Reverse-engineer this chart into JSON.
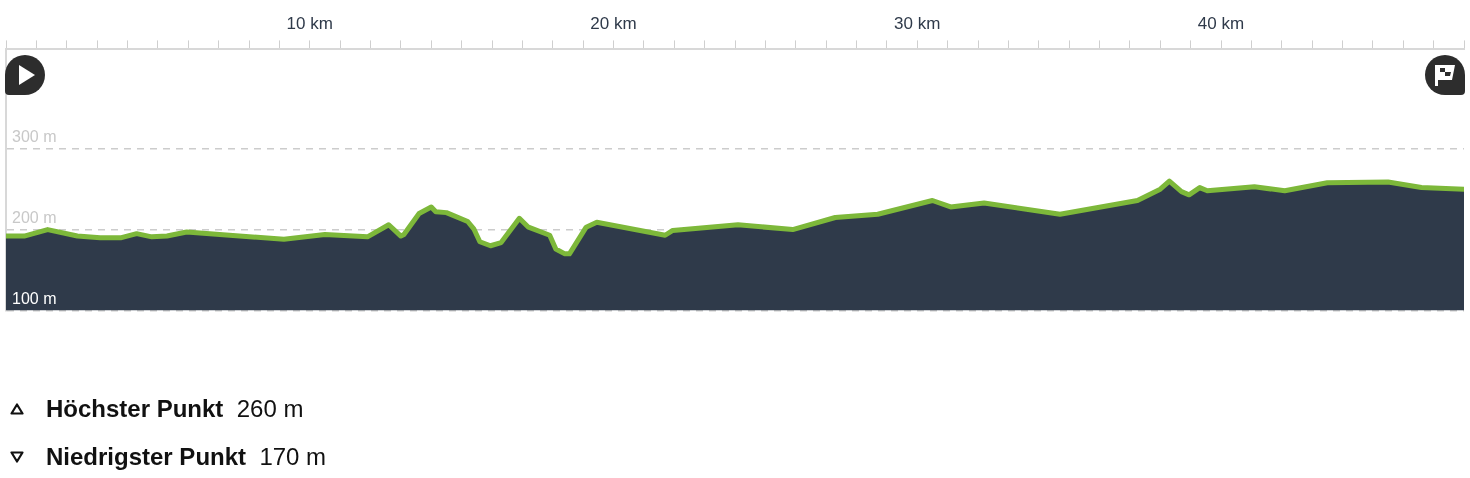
{
  "chart_data": {
    "type": "area",
    "x": [
      0,
      0.6,
      1.37,
      2.35,
      3.1,
      3.8,
      4.3,
      4.8,
      5.3,
      5.95,
      9.15,
      10.5,
      11.9,
      12.6,
      13.0,
      13.1,
      13.6,
      14.0,
      14.15,
      14.5,
      15.2,
      15.4,
      15.6,
      15.95,
      16.3,
      16.9,
      17.2,
      17.9,
      18.1,
      18.4,
      18.55,
      19.1,
      19.45,
      21.7,
      21.95,
      24.1,
      25.9,
      27.3,
      28.7,
      30.5,
      31.1,
      32.2,
      34.7,
      37.25,
      38.0,
      38.3,
      38.7,
      38.95,
      39.3,
      39.55,
      41.1,
      42.1,
      43.5,
      45.5,
      46.6,
      48.0
    ],
    "series": [
      {
        "color": "#7db83a",
        "values": [
          192,
          192,
          200,
          192,
          190,
          190,
          195,
          191,
          192,
          197,
          188,
          194,
          191,
          206,
          192,
          194,
          220,
          228,
          222,
          221,
          210,
          201,
          185,
          180,
          184,
          214,
          203,
          193,
          176,
          170,
          170,
          203,
          209,
          193,
          199,
          206,
          200,
          215,
          219,
          236,
          228,
          233,
          219,
          236,
          250,
          260,
          247,
          243,
          252,
          248,
          253,
          248,
          258,
          259,
          252,
          250
        ]
      }
    ],
    "xlim": [
      0,
      48
    ],
    "xticks": [
      {
        "value": 0,
        "label": null
      },
      {
        "value": 1,
        "label": null
      },
      {
        "value": 2,
        "label": null
      },
      {
        "value": 3,
        "label": null
      },
      {
        "value": 4,
        "label": null
      },
      {
        "value": 5,
        "label": null
      },
      {
        "value": 6,
        "label": null
      },
      {
        "value": 7,
        "label": null
      },
      {
        "value": 8,
        "label": null
      },
      {
        "value": 9,
        "label": null
      },
      {
        "value": 10,
        "label": "10 km"
      },
      {
        "value": 11,
        "label": null
      },
      {
        "value": 12,
        "label": null
      },
      {
        "value": 13,
        "label": null
      },
      {
        "value": 14,
        "label": null
      },
      {
        "value": 15,
        "label": null
      },
      {
        "value": 16,
        "label": null
      },
      {
        "value": 17,
        "label": null
      },
      {
        "value": 18,
        "label": null
      },
      {
        "value": 19,
        "label": null
      },
      {
        "value": 20,
        "label": "20 km"
      },
      {
        "value": 21,
        "label": null
      },
      {
        "value": 22,
        "label": null
      },
      {
        "value": 23,
        "label": null
      },
      {
        "value": 24,
        "label": null
      },
      {
        "value": 25,
        "label": null
      },
      {
        "value": 26,
        "label": null
      },
      {
        "value": 27,
        "label": null
      },
      {
        "value": 28,
        "label": null
      },
      {
        "value": 29,
        "label": null
      },
      {
        "value": 30,
        "label": "30 km"
      },
      {
        "value": 31,
        "label": null
      },
      {
        "value": 32,
        "label": null
      },
      {
        "value": 33,
        "label": null
      },
      {
        "value": 34,
        "label": null
      },
      {
        "value": 35,
        "label": null
      },
      {
        "value": 36,
        "label": null
      },
      {
        "value": 37,
        "label": null
      },
      {
        "value": 38,
        "label": null
      },
      {
        "value": 39,
        "label": null
      },
      {
        "value": 40,
        "label": "40 km"
      },
      {
        "value": 41,
        "label": null
      },
      {
        "value": 42,
        "label": null
      },
      {
        "value": 43,
        "label": null
      },
      {
        "value": 44,
        "label": null
      },
      {
        "value": 45,
        "label": null
      },
      {
        "value": 46,
        "label": null
      },
      {
        "value": 47,
        "label": null
      },
      {
        "value": 48,
        "label": null
      }
    ],
    "ylim": [
      100,
      423
    ],
    "yticks": [
      {
        "value": 100,
        "label": "100 m"
      },
      {
        "value": 200,
        "label": "200 m"
      },
      {
        "value": 300,
        "label": "300 m"
      }
    ],
    "grid": "y",
    "line_style": "solid",
    "marker": "none",
    "legend": false,
    "annotations": [
      "Höchster Punkt 260 m",
      "Niedrigster Punkt 170 m"
    ]
  }
}
